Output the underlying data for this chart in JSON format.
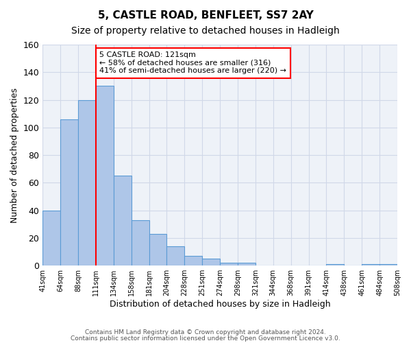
{
  "title1": "5, CASTLE ROAD, BENFLEET, SS7 2AY",
  "title2": "Size of property relative to detached houses in Hadleigh",
  "xlabel": "Distribution of detached houses by size in Hadleigh",
  "ylabel": "Number of detached properties",
  "bar_values": [
    40,
    106,
    120,
    130,
    65,
    33,
    23,
    14,
    7,
    5,
    2,
    2,
    0,
    0,
    0,
    0,
    1,
    0,
    1,
    1
  ],
  "bin_labels": [
    "41sqm",
    "64sqm",
    "88sqm",
    "111sqm",
    "134sqm",
    "158sqm",
    "181sqm",
    "204sqm",
    "228sqm",
    "251sqm",
    "274sqm",
    "298sqm",
    "321sqm",
    "344sqm",
    "368sqm",
    "391sqm",
    "414sqm",
    "438sqm",
    "461sqm",
    "484sqm",
    "508sqm"
  ],
  "bar_color": "#aec6e8",
  "bar_edge_color": "#5b9bd5",
  "grid_color": "#d0d8e8",
  "background_color": "#eef2f8",
  "red_line_x": 3.0,
  "annotation_box_text": "5 CASTLE ROAD: 121sqm\n← 58% of detached houses are smaller (316)\n41% of semi-detached houses are larger (220) →",
  "annotation_box_color": "white",
  "annotation_box_edge_color": "red",
  "ylim": [
    0,
    160
  ],
  "yticks": [
    0,
    20,
    40,
    60,
    80,
    100,
    120,
    140,
    160
  ],
  "footnote1": "Contains HM Land Registry data © Crown copyright and database right 2024.",
  "footnote2": "Contains public sector information licensed under the Open Government Licence v3.0."
}
